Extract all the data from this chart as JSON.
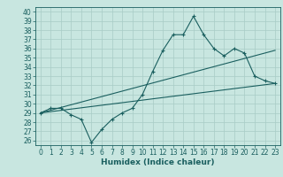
{
  "xlabel": "Humidex (Indice chaleur)",
  "background_color": "#c8e6e0",
  "grid_color": "#a8ccc6",
  "line_color": "#1a5f5f",
  "xlim": [
    -0.5,
    23.5
  ],
  "ylim": [
    25.5,
    40.5
  ],
  "xticks": [
    0,
    1,
    2,
    3,
    4,
    5,
    6,
    7,
    8,
    9,
    10,
    11,
    12,
    13,
    14,
    15,
    16,
    17,
    18,
    19,
    20,
    21,
    22,
    23
  ],
  "yticks": [
    26,
    27,
    28,
    29,
    30,
    31,
    32,
    33,
    34,
    35,
    36,
    37,
    38,
    39,
    40
  ],
  "line1_x": [
    0,
    1,
    2,
    3,
    4,
    5,
    6,
    7,
    8,
    9,
    10,
    11,
    12,
    13,
    14,
    15,
    16,
    17,
    18,
    19,
    20,
    21,
    22,
    23
  ],
  "line1_y": [
    29,
    29.5,
    29.5,
    28.8,
    28.3,
    25.8,
    27.2,
    28.3,
    29.0,
    29.5,
    31.0,
    33.5,
    35.8,
    37.5,
    37.5,
    39.5,
    37.5,
    36.0,
    35.2,
    36.0,
    35.5,
    33.0,
    32.5,
    32.2
  ],
  "line2_x": [
    0,
    23
  ],
  "line2_y": [
    29.0,
    35.8
  ],
  "line3_x": [
    0,
    23
  ],
  "line3_y": [
    29.0,
    32.2
  ],
  "tick_fontsize": 5.5,
  "xlabel_fontsize": 6.5
}
